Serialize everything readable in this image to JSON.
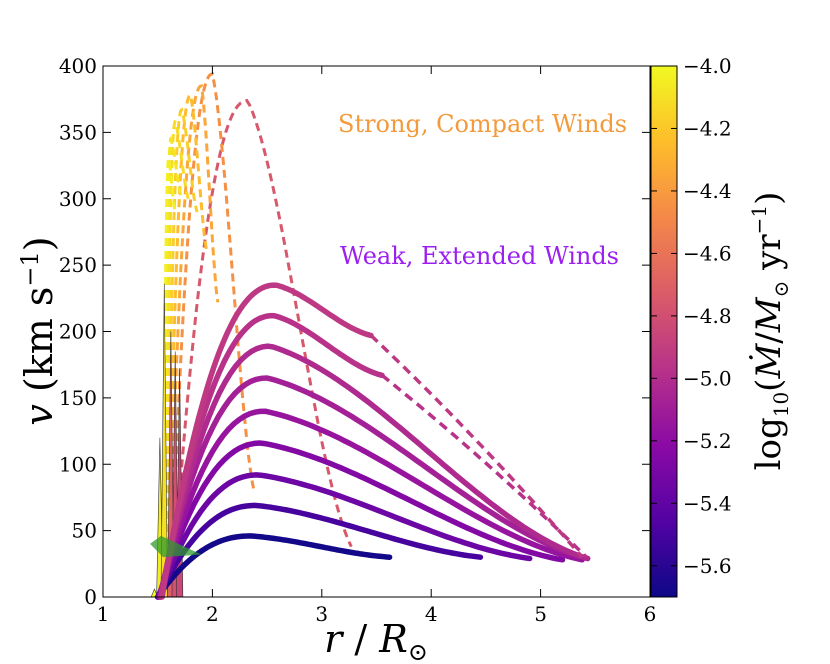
{
  "chart_data": {
    "type": "line",
    "xlabel": "r / R⊙",
    "ylabel": "v (km s−1)",
    "xlim": [
      1,
      6
    ],
    "ylim": [
      0,
      400
    ],
    "xticks": [
      "1",
      "2",
      "3",
      "4",
      "5",
      "6"
    ],
    "yticks": [
      "0",
      "50",
      "100",
      "150",
      "200",
      "250",
      "300",
      "350",
      "400"
    ],
    "colorbar": {
      "label": "log10(Ṁ/M⊙ yr−1)",
      "range": [
        -5.7,
        -4.0
      ],
      "ticks": [
        "−4.0",
        "−4.2",
        "−4.4",
        "−4.6",
        "−4.8",
        "−5.0",
        "−5.2",
        "−5.4",
        "−5.6"
      ],
      "tick_values": [
        -4.0,
        -4.2,
        -4.4,
        -4.6,
        -4.8,
        -5.0,
        -5.2,
        -5.4,
        -5.6
      ],
      "colormap_stops": [
        "#0d0887",
        "#5302a3",
        "#8b0aa5",
        "#b83289",
        "#db5c68",
        "#f48849",
        "#febd2a",
        "#f0f921"
      ]
    },
    "annotations": [
      {
        "text": "Strong, Compact Winds",
        "color": "#f39a3c"
      },
      {
        "text": "Weak, Extended Winds",
        "color": "#9b1ff0"
      }
    ],
    "weak_series": [
      {
        "logmdot": -5.68,
        "r_start": 1.5,
        "r_peak": 2.35,
        "v_peak": 46,
        "r_end": 3.62,
        "v_end": 30,
        "r_dash_end": null,
        "v_dash_end": null
      },
      {
        "logmdot": -5.5,
        "r_start": 1.5,
        "r_peak": 2.4,
        "v_peak": 69,
        "r_end": 4.45,
        "v_end": 30,
        "r_dash_end": null,
        "v_dash_end": null
      },
      {
        "logmdot": -5.35,
        "r_start": 1.51,
        "r_peak": 2.42,
        "v_peak": 92,
        "r_end": 4.9,
        "v_end": 29,
        "r_dash_end": null,
        "v_dash_end": null
      },
      {
        "logmdot": -5.25,
        "r_start": 1.51,
        "r_peak": 2.45,
        "v_peak": 116,
        "r_end": 5.2,
        "v_end": 28,
        "r_dash_end": null,
        "v_dash_end": null
      },
      {
        "logmdot": -5.15,
        "r_start": 1.52,
        "r_peak": 2.48,
        "v_peak": 140,
        "r_end": 5.38,
        "v_end": 28,
        "r_dash_end": null,
        "v_dash_end": null
      },
      {
        "logmdot": -5.08,
        "r_start": 1.52,
        "r_peak": 2.5,
        "v_peak": 165,
        "r_end": 5.43,
        "v_end": 29,
        "r_dash_end": null,
        "v_dash_end": null
      },
      {
        "logmdot": -5.02,
        "r_start": 1.53,
        "r_peak": 2.53,
        "v_peak": 189,
        "r_end": 5.43,
        "v_end": 29,
        "r_dash_end": null,
        "v_dash_end": null
      },
      {
        "logmdot": -4.97,
        "r_start": 1.53,
        "r_peak": 2.56,
        "v_peak": 212,
        "r_end": 3.55,
        "v_end": 167,
        "r_dash_end": 5.42,
        "v_dash_end": 30
      },
      {
        "logmdot": -4.93,
        "r_start": 1.54,
        "r_peak": 2.58,
        "v_peak": 235,
        "r_end": 3.45,
        "v_end": 197,
        "r_dash_end": 5.38,
        "v_dash_end": 30
      }
    ],
    "strong_series": [
      {
        "logmdot": -4.75,
        "r_start": 1.63,
        "r_peak": 2.32,
        "v_peak": 374,
        "r_end": 3.27,
        "v_end": 38
      },
      {
        "logmdot": -4.45,
        "r_start": 1.62,
        "r_peak": 2.0,
        "v_peak": 394,
        "r_end": 2.38,
        "v_end": 80
      },
      {
        "logmdot": -4.35,
        "r_start": 1.6,
        "r_peak": 1.9,
        "v_peak": 385,
        "r_end": 2.05,
        "v_end": 222
      },
      {
        "logmdot": -4.25,
        "r_start": 1.59,
        "r_peak": 1.8,
        "v_peak": 378,
        "r_end": 1.95,
        "v_end": 260
      },
      {
        "logmdot": -4.18,
        "r_start": 1.58,
        "r_peak": 1.72,
        "v_peak": 367,
        "r_end": 1.86,
        "v_end": 290
      },
      {
        "logmdot": -4.12,
        "r_start": 1.57,
        "r_peak": 1.66,
        "v_peak": 358,
        "r_end": 1.78,
        "v_end": 300
      },
      {
        "logmdot": -4.08,
        "r_start": 1.56,
        "r_peak": 1.62,
        "v_peak": 345,
        "r_end": 1.72,
        "v_end": 300
      },
      {
        "logmdot": -4.04,
        "r_start": 1.55,
        "r_peak": 1.6,
        "v_peak": 330,
        "r_end": 1.66,
        "v_end": 290
      }
    ],
    "spikes": [
      {
        "logmdot": -4.0,
        "r": 1.47,
        "v_top": 6
      },
      {
        "logmdot": -4.05,
        "r": 1.52,
        "v_top": 120
      },
      {
        "logmdot": -4.1,
        "r": 1.56,
        "v_top": 236
      },
      {
        "logmdot": -4.7,
        "r": 1.62,
        "v_top": 200
      },
      {
        "logmdot": -4.8,
        "r": 1.66,
        "v_top": 185
      },
      {
        "logmdot": -4.85,
        "r": 1.7,
        "v_top": 172
      }
    ],
    "marker": {
      "r_from": 1.43,
      "v_from": 40,
      "r_to": 1.9,
      "v_to": 32,
      "color": "#2e9a2e"
    }
  }
}
